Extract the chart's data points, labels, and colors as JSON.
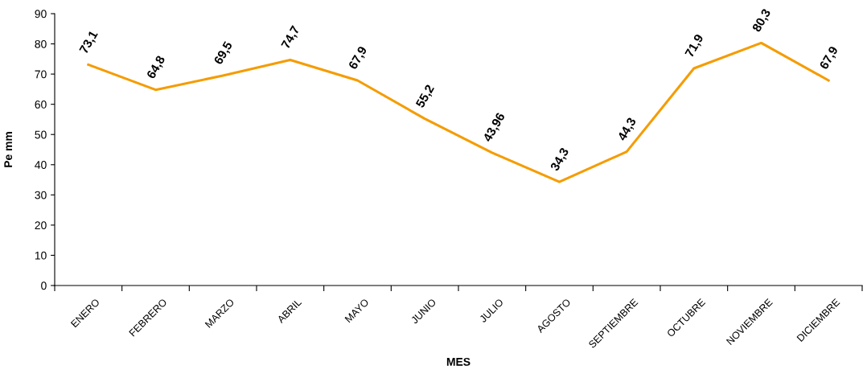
{
  "chart_data": {
    "type": "line",
    "xlabel": "MES",
    "ylabel": "Pe mm",
    "categories": [
      "ENERO",
      "FEBRERO",
      "MARZO",
      "ABRIL",
      "MAYO",
      "JUNIO",
      "JULIO",
      "AGOSTO",
      "SEPTIEMBRE",
      "OCTUBRE",
      "NOVIEMBRE",
      "DICIEMBRE"
    ],
    "series": [
      {
        "color": "#f59c00",
        "values": [
          73.1,
          64.8,
          69.5,
          74.7,
          67.9,
          55.2,
          43.96,
          34.3,
          44.3,
          71.9,
          80.3,
          67.9
        ],
        "value_labels": [
          "73,1",
          "64,8",
          "69,5",
          "74,7",
          "67,9",
          "55,2",
          "43,96",
          "34,3",
          "44,3",
          "71,9",
          "80,3",
          "67,9"
        ]
      }
    ],
    "ylim": [
      0,
      90
    ],
    "yticks": [
      0,
      10,
      20,
      30,
      40,
      50,
      60,
      70,
      80,
      90
    ],
    "grid": false,
    "legend": false,
    "marker": "none",
    "line_style": "solid"
  }
}
